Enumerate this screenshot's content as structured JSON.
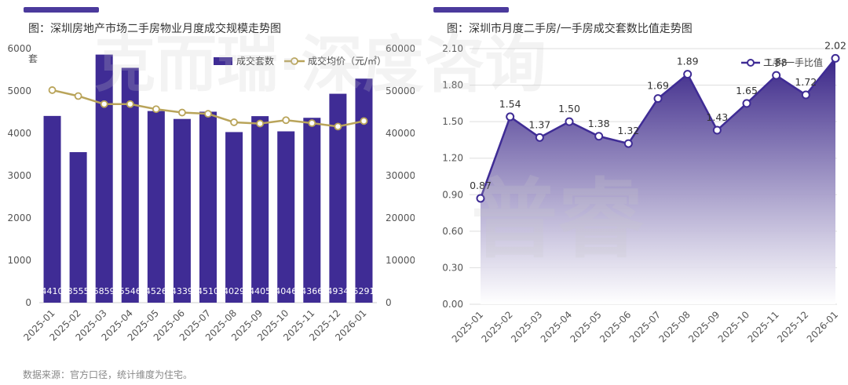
{
  "colors": {
    "bar": "#3f2c95",
    "price_line": "#b9a45a",
    "ratio_line": "#3f2c95",
    "accent": "#4b3a9c"
  },
  "watermark": {
    "left_text": "克而瑞·深度咨询",
    "right_text": "普睿"
  },
  "footer": {
    "note": "数据来源：官方口径，统计维度为住宅。"
  },
  "chart_data": [
    {
      "type": "bar",
      "title": "图：深圳房地产市场二手房物业月度成交规模走势图",
      "y_unit": "套",
      "categories": [
        "2025-01",
        "2025-02",
        "2025-03",
        "2025-04",
        "2025-05",
        "2025-06",
        "2025-07",
        "2025-08",
        "2025-09",
        "2025-10",
        "2025-11",
        "2025-12",
        "2026-01"
      ],
      "series": [
        {
          "name": "成交套数",
          "axis": "left",
          "values": [
            4410,
            3555,
            5859,
            5546,
            4526,
            4339,
            4510,
            4029,
            4405,
            4046,
            4366,
            4934,
            5291
          ]
        },
        {
          "name": "成交均价（元/㎡）",
          "type": "line",
          "axis": "right",
          "values": [
            50200,
            48800,
            46900,
            46900,
            45700,
            44900,
            44600,
            42600,
            42300,
            43100,
            42400,
            41600,
            42900
          ]
        }
      ],
      "ylim_left": [
        0,
        6000
      ],
      "yticks_left": [
        0,
        1000,
        2000,
        3000,
        4000,
        5000,
        6000
      ],
      "ylim_right": [
        0,
        60000
      ],
      "yticks_right": [
        0,
        10000,
        20000,
        30000,
        40000,
        50000,
        60000
      ],
      "legend": "top-right",
      "grid": false
    },
    {
      "type": "area",
      "title": "图：深圳市月度二手房/一手房成交套数比值走势图",
      "categories": [
        "2025-01",
        "2025-02",
        "2025-03",
        "2025-04",
        "2025-05",
        "2025-06",
        "2025-07",
        "2025-08",
        "2025-09",
        "2025-10",
        "2025-11",
        "2025-12",
        "2026-01"
      ],
      "series": [
        {
          "name": "二手/一手比值",
          "values": [
            0.87,
            1.54,
            1.37,
            1.5,
            1.38,
            1.32,
            1.69,
            1.89,
            1.43,
            1.65,
            1.88,
            1.72,
            2.02
          ]
        }
      ],
      "ylim": [
        0,
        2.1
      ],
      "yticks": [
        "0.00",
        "0.30",
        "0.60",
        "0.90",
        "1.20",
        "1.50",
        "1.80",
        "2.10"
      ],
      "legend": "top-right",
      "grid": true
    }
  ]
}
